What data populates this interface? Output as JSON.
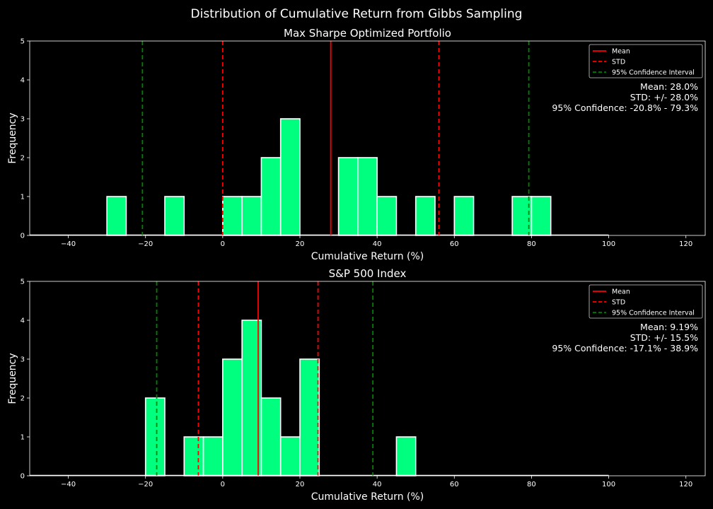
{
  "suptitle": "Distribution of Cumulative Return from Gibbs Sampling",
  "colors": {
    "bar": "#00ff7f",
    "bar_edge": "#ffffff",
    "mean": "#ff0000",
    "std": "#ff0000",
    "ci": "#008000",
    "axes": "#ffffff",
    "background": "#000000"
  },
  "chart_data": [
    {
      "type": "bar",
      "title": "Max Sharpe Optimized Portfolio",
      "xlabel": "Cumulative Return (%)",
      "ylabel": "Frequency",
      "xlim": [
        -50,
        125
      ],
      "ylim": [
        0,
        5
      ],
      "xticks": [
        -40,
        -20,
        0,
        20,
        40,
        60,
        80,
        100,
        120
      ],
      "yticks": [
        0,
        1,
        2,
        3,
        4,
        5
      ],
      "bin_width": 5,
      "bin_range": [
        -50,
        100
      ],
      "bins": [
        {
          "x0": -30,
          "x1": -25,
          "count": 1
        },
        {
          "x0": -15,
          "x1": -10,
          "count": 1
        },
        {
          "x0": 0,
          "x1": 5,
          "count": 1
        },
        {
          "x0": 5,
          "x1": 10,
          "count": 1
        },
        {
          "x0": 10,
          "x1": 15,
          "count": 2
        },
        {
          "x0": 15,
          "x1": 20,
          "count": 3
        },
        {
          "x0": 30,
          "x1": 35,
          "count": 2
        },
        {
          "x0": 35,
          "x1": 40,
          "count": 2
        },
        {
          "x0": 40,
          "x1": 45,
          "count": 1
        },
        {
          "x0": 50,
          "x1": 55,
          "count": 1
        },
        {
          "x0": 60,
          "x1": 65,
          "count": 1
        },
        {
          "x0": 75,
          "x1": 80,
          "count": 1
        },
        {
          "x0": 80,
          "x1": 85,
          "count": 1
        }
      ],
      "lines": {
        "mean": 28.0,
        "std_low": 0.0,
        "std_high": 56.0,
        "ci_low": -20.8,
        "ci_high": 79.3
      },
      "legend": {
        "position": "top-right",
        "entries": [
          "Mean",
          "STD",
          "95% Confidence Interval"
        ]
      },
      "annotations": [
        "Mean: 28.0%",
        "STD: +/- 28.0%",
        "95% Confidence: -20.8% - 79.3%"
      ]
    },
    {
      "type": "bar",
      "title": "S&P 500 Index",
      "xlabel": "Cumulative Return (%)",
      "ylabel": "Frequency",
      "xlim": [
        -50,
        125
      ],
      "ylim": [
        0,
        5
      ],
      "xticks": [
        -40,
        -20,
        0,
        20,
        40,
        60,
        80,
        100,
        120
      ],
      "yticks": [
        0,
        1,
        2,
        3,
        4,
        5
      ],
      "bin_width": 5,
      "bin_range": [
        -50,
        100
      ],
      "bins": [
        {
          "x0": -20,
          "x1": -15,
          "count": 2
        },
        {
          "x0": -10,
          "x1": -5,
          "count": 1
        },
        {
          "x0": -5,
          "x1": 0,
          "count": 1
        },
        {
          "x0": 0,
          "x1": 5,
          "count": 3
        },
        {
          "x0": 5,
          "x1": 10,
          "count": 4
        },
        {
          "x0": 10,
          "x1": 15,
          "count": 2
        },
        {
          "x0": 15,
          "x1": 20,
          "count": 1
        },
        {
          "x0": 20,
          "x1": 25,
          "count": 3
        },
        {
          "x0": 45,
          "x1": 50,
          "count": 1
        }
      ],
      "lines": {
        "mean": 9.19,
        "std_low": -6.31,
        "std_high": 24.69,
        "ci_low": -17.1,
        "ci_high": 38.9
      },
      "legend": {
        "position": "top-right",
        "entries": [
          "Mean",
          "STD",
          "95% Confidence Interval"
        ]
      },
      "annotations": [
        "Mean: 9.19%",
        "STD: +/- 15.5%",
        "95% Confidence: -17.1% - 38.9%"
      ]
    }
  ]
}
